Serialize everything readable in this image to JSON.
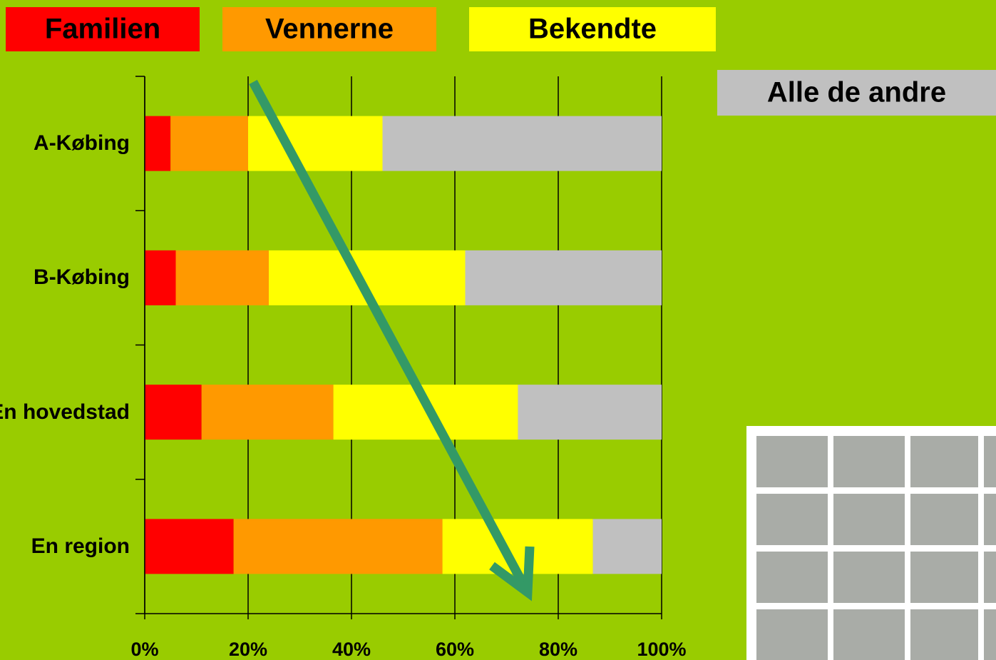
{
  "chart_data": {
    "type": "bar",
    "orientation": "horizontal",
    "stacked": true,
    "categories": [
      "A-Købing",
      "B-Købing",
      "En hovedstad",
      "En region"
    ],
    "series": [
      {
        "name": "Familien",
        "color": "#ff0000",
        "values": [
          5,
          6,
          11,
          17.2
        ]
      },
      {
        "name": "Vennerne",
        "color": "#ff9900",
        "values": [
          15,
          18,
          25.5,
          40.4
        ]
      },
      {
        "name": "Bekendte",
        "color": "#ffff00",
        "values": [
          26,
          38,
          35.7,
          29.1
        ]
      },
      {
        "name": "Alle de andre",
        "color": "#c0c0c0",
        "values": [
          54,
          38,
          27.8,
          13.3
        ]
      }
    ],
    "xlim": [
      0,
      100
    ],
    "xticks": [
      {
        "value": 0,
        "label": "0%"
      },
      {
        "value": 20,
        "label": "20%"
      },
      {
        "value": 40,
        "label": "40%"
      },
      {
        "value": 60,
        "label": "60%"
      },
      {
        "value": 80,
        "label": "80%"
      },
      {
        "value": 100,
        "label": "100%"
      }
    ],
    "grid": true
  }
}
